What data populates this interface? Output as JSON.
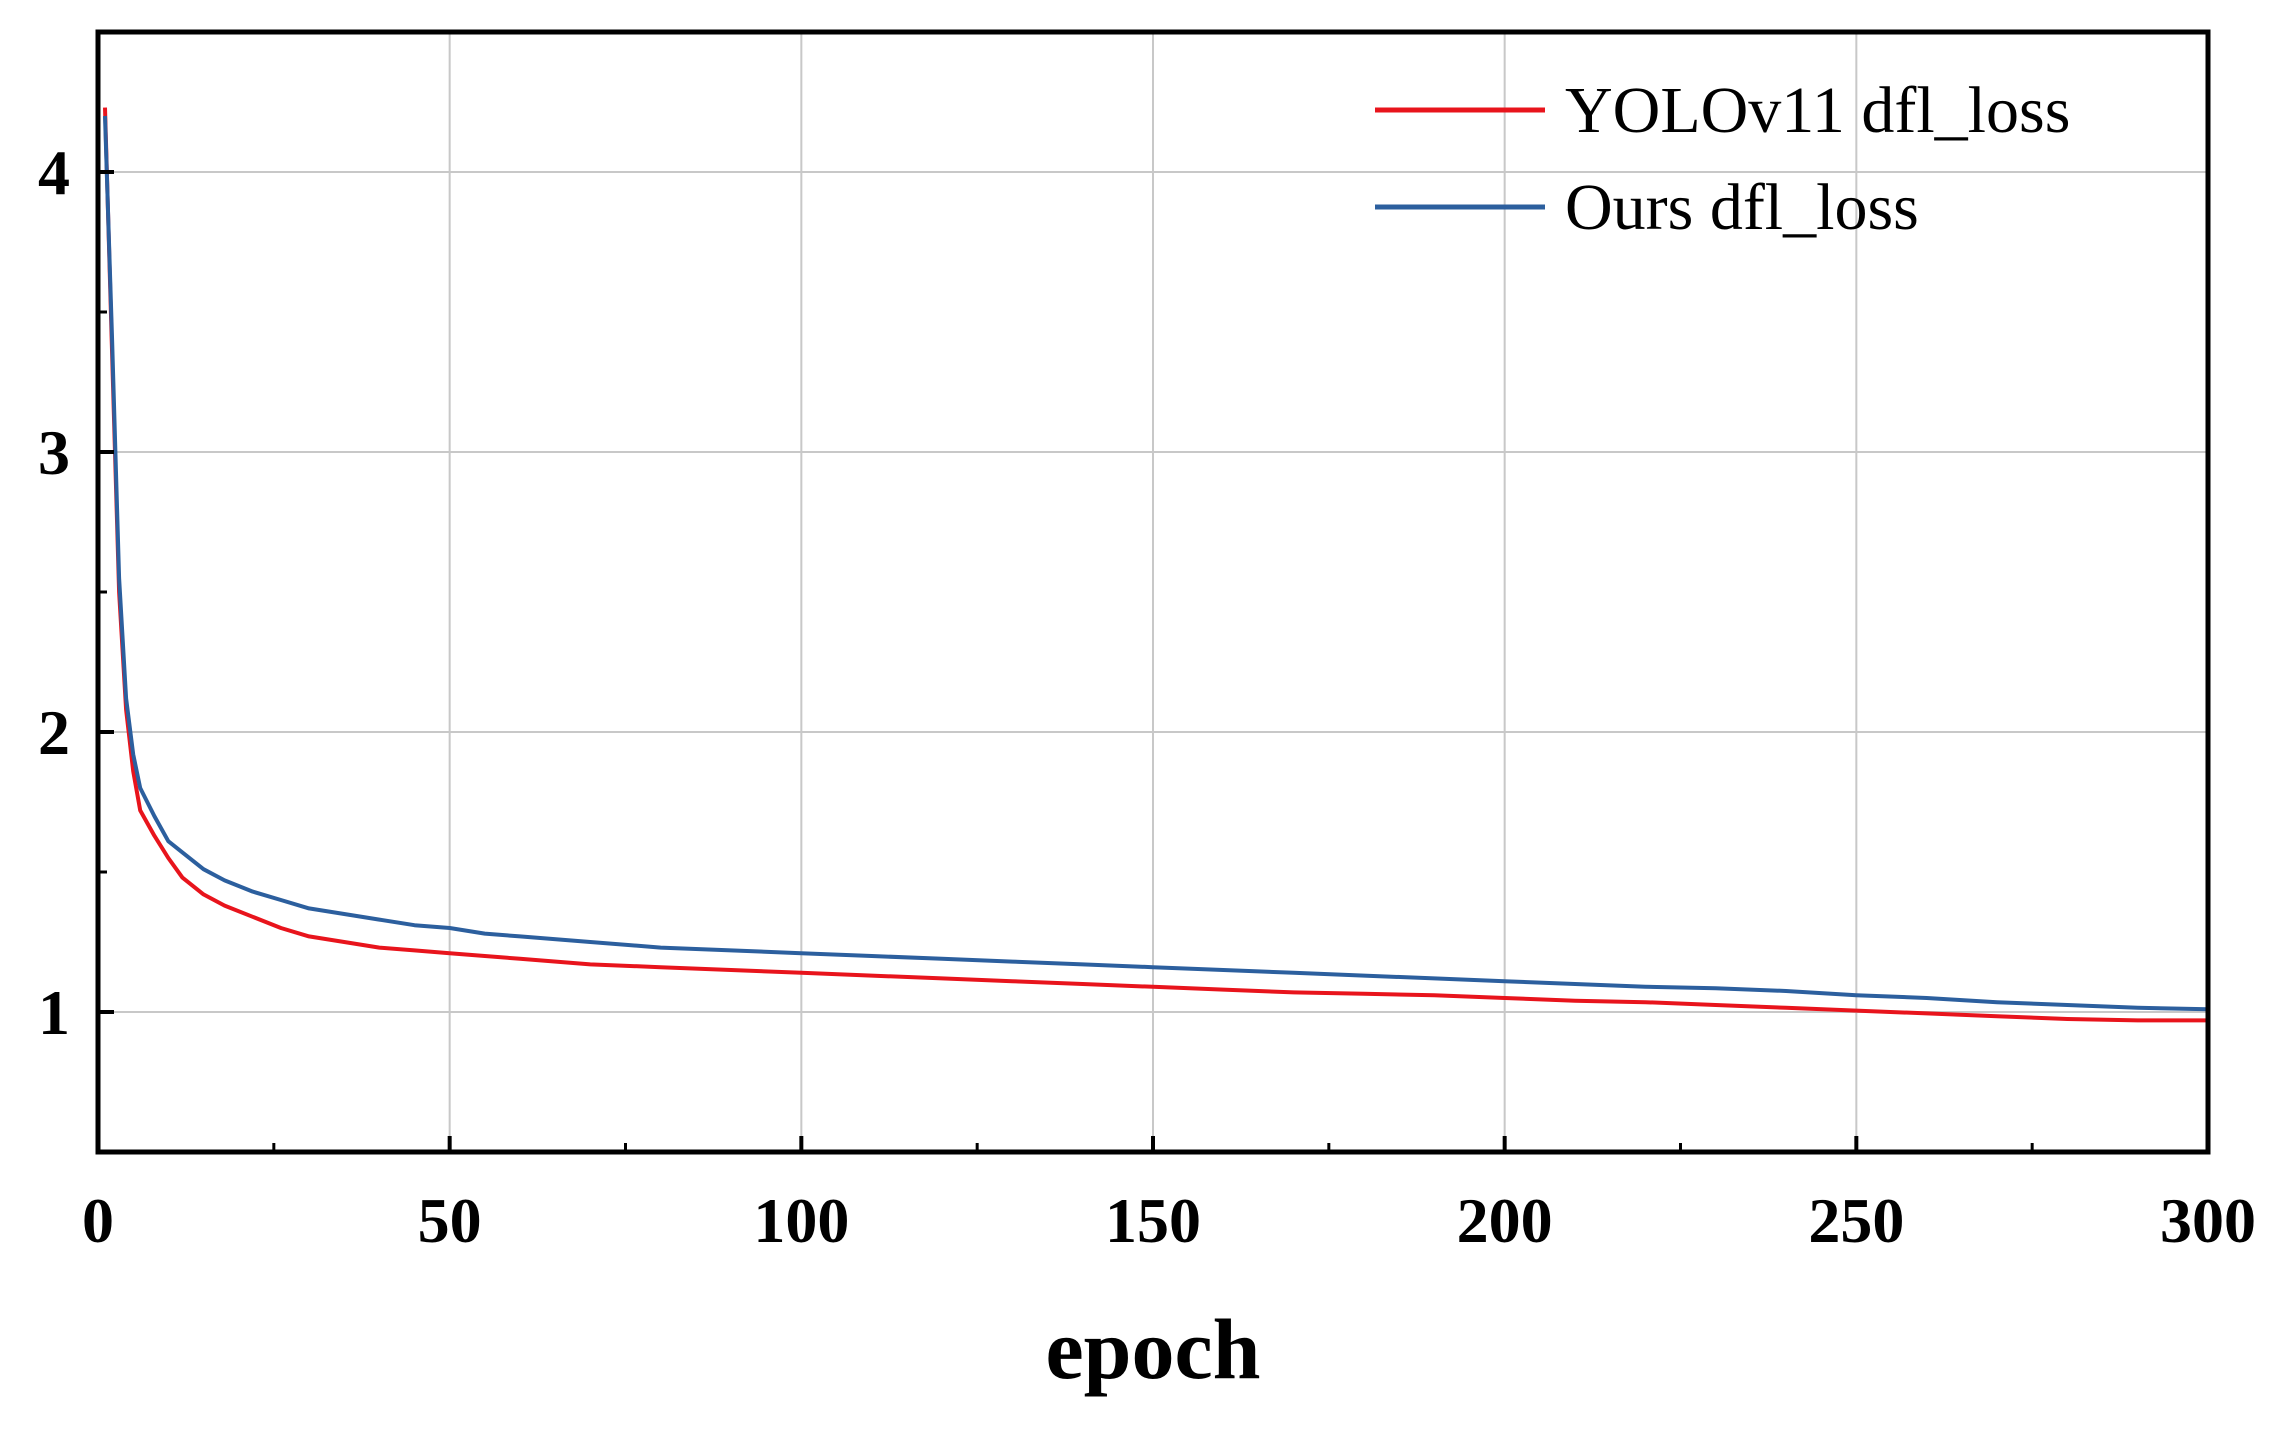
{
  "chart_data": {
    "type": "line",
    "title": "",
    "xlabel": "epoch",
    "ylabel": "",
    "xlim": [
      0,
      300
    ],
    "ylim": [
      0.5,
      4.5
    ],
    "xticks": [
      0,
      50,
      100,
      150,
      200,
      250,
      300
    ],
    "yticks": [
      1,
      2,
      3,
      4
    ],
    "xtick_labels": [
      "0",
      "50",
      "100",
      "150",
      "200",
      "250",
      "300"
    ],
    "ytick_labels": [
      "1",
      "2",
      "3",
      "4"
    ],
    "grid": true,
    "legend_position": "top-right",
    "series": [
      {
        "name": "YOLOv11 dfl_loss",
        "color": "#e8141c",
        "x": [
          1,
          2,
          3,
          4,
          5,
          6,
          8,
          10,
          12,
          15,
          18,
          22,
          26,
          30,
          35,
          40,
          45,
          50,
          55,
          60,
          70,
          80,
          90,
          100,
          110,
          120,
          130,
          140,
          150,
          160,
          170,
          180,
          190,
          200,
          210,
          220,
          230,
          240,
          250,
          260,
          270,
          280,
          290,
          300
        ],
        "y": [
          4.23,
          3.35,
          2.5,
          2.08,
          1.86,
          1.72,
          1.63,
          1.55,
          1.48,
          1.42,
          1.38,
          1.34,
          1.3,
          1.27,
          1.25,
          1.23,
          1.22,
          1.21,
          1.2,
          1.19,
          1.17,
          1.16,
          1.15,
          1.14,
          1.13,
          1.12,
          1.11,
          1.1,
          1.09,
          1.08,
          1.07,
          1.065,
          1.06,
          1.05,
          1.04,
          1.035,
          1.025,
          1.015,
          1.005,
          0.995,
          0.985,
          0.975,
          0.97,
          0.97
        ]
      },
      {
        "name": "Ours dfl_loss",
        "color": "#2c5f9e",
        "x": [
          1,
          2,
          3,
          4,
          5,
          6,
          8,
          10,
          12,
          15,
          18,
          22,
          26,
          30,
          35,
          40,
          45,
          50,
          55,
          60,
          70,
          80,
          90,
          100,
          110,
          120,
          130,
          140,
          150,
          160,
          170,
          180,
          190,
          200,
          210,
          220,
          230,
          240,
          250,
          260,
          270,
          280,
          290,
          300
        ],
        "y": [
          4.2,
          3.4,
          2.55,
          2.12,
          1.92,
          1.8,
          1.7,
          1.61,
          1.57,
          1.51,
          1.47,
          1.43,
          1.4,
          1.37,
          1.35,
          1.33,
          1.31,
          1.3,
          1.28,
          1.27,
          1.25,
          1.23,
          1.22,
          1.21,
          1.2,
          1.19,
          1.18,
          1.17,
          1.16,
          1.15,
          1.14,
          1.13,
          1.12,
          1.11,
          1.1,
          1.09,
          1.085,
          1.075,
          1.06,
          1.05,
          1.035,
          1.025,
          1.015,
          1.01
        ]
      }
    ]
  }
}
